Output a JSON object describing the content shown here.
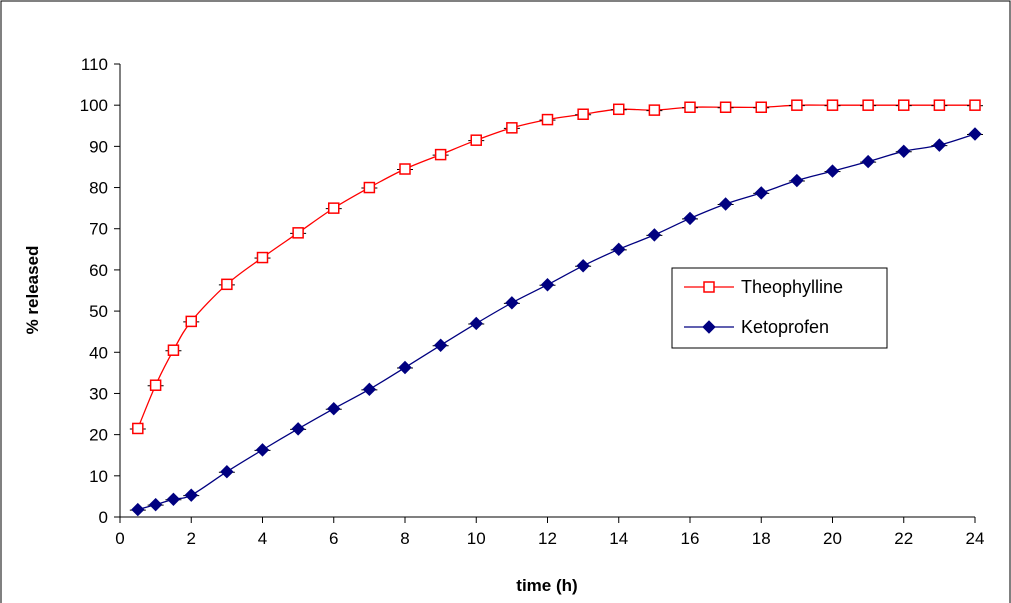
{
  "chart_data": {
    "type": "line",
    "title": "",
    "xlabel": "time (h)",
    "ylabel": "% released",
    "xlim": [
      0,
      24
    ],
    "ylim": [
      0,
      110
    ],
    "xticks": [
      0,
      2,
      4,
      6,
      8,
      10,
      12,
      14,
      16,
      18,
      20,
      22,
      24
    ],
    "yticks": [
      0,
      10,
      20,
      30,
      40,
      50,
      60,
      70,
      80,
      90,
      100,
      110
    ],
    "grid": false,
    "legend_position": "right-center",
    "series": [
      {
        "name": "Theophylline",
        "color": "#ff0000",
        "marker": "open-square",
        "x": [
          0.5,
          1,
          1.5,
          2,
          3,
          4,
          5,
          6,
          7,
          8,
          9,
          10,
          11,
          12,
          13,
          14,
          15,
          16,
          17,
          18,
          19,
          20,
          21,
          22,
          23,
          24
        ],
        "y": [
          21.5,
          32,
          40.5,
          47.5,
          56.5,
          63,
          69,
          75,
          80,
          84.5,
          88,
          91.5,
          94.5,
          96.5,
          97.8,
          99,
          98.8,
          99.5,
          99.5,
          99.5,
          100,
          100,
          100,
          100,
          100,
          100
        ]
      },
      {
        "name": "Ketoprofen",
        "color": "#000080",
        "marker": "filled-diamond",
        "x": [
          0.5,
          1,
          1.5,
          2,
          3,
          4,
          5,
          6,
          7,
          8,
          9,
          10,
          11,
          12,
          13,
          14,
          15,
          16,
          17,
          18,
          19,
          20,
          21,
          22,
          23,
          24
        ],
        "y": [
          1.8,
          3,
          4.3,
          5.3,
          11,
          16.3,
          21.4,
          26.3,
          31,
          36.3,
          41.7,
          47,
          52,
          56.4,
          61,
          65,
          68.5,
          72.5,
          76,
          78.7,
          81.7,
          84,
          86.3,
          88.8,
          90.3,
          93
        ]
      }
    ]
  }
}
